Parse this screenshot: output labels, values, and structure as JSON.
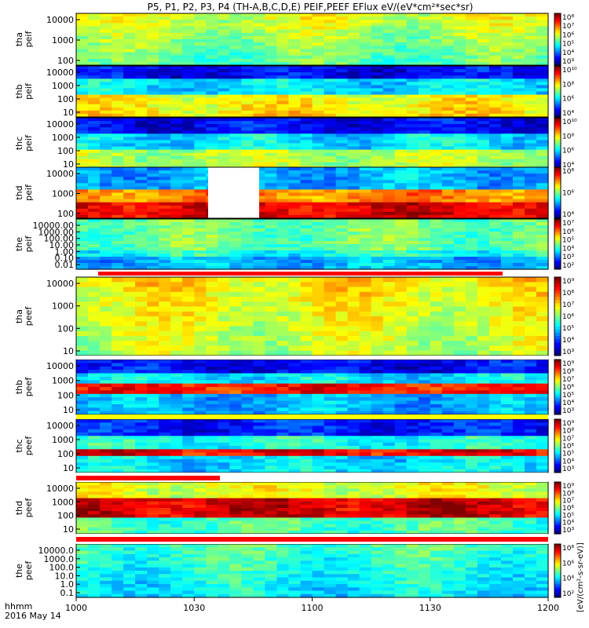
{
  "title": "P5, P1, P2, P3, P4 (TH-A,B,C,D,E) PEIF,PEEF EFlux eV/(eV*cm²*sec*sr)",
  "colorbar_unit": "[eV/(cm²-s-sr-eV)]",
  "time_axis": {
    "label1": "hhmm",
    "label2": "2016 May 14",
    "ticks": [
      "1000",
      "1030",
      "1100",
      "1130",
      "1200"
    ]
  },
  "chart_data": [
    {
      "type": "heatmap",
      "probe": "tha",
      "product": "peif",
      "ylabel": [
        "tha",
        "peif"
      ],
      "yticks": [
        "10000",
        "1000",
        "100"
      ],
      "colorbar_ticks": [
        "10⁸",
        "10⁷",
        "10⁶",
        "10⁵",
        "10⁴",
        "10³"
      ],
      "x_range": [
        "1000",
        "1200"
      ]
    },
    {
      "type": "heatmap",
      "probe": "thb",
      "product": "peif",
      "ylabel": [
        "thb",
        "peif"
      ],
      "yticks": [
        "10000",
        "1000",
        "100",
        "10"
      ],
      "colorbar_ticks": [
        "10¹⁰",
        "10⁸",
        "10⁶",
        "10⁴"
      ],
      "x_range": [
        "1000",
        "1200"
      ]
    },
    {
      "type": "heatmap",
      "probe": "thc",
      "product": "peif",
      "ylabel": [
        "thc",
        "peif"
      ],
      "yticks": [
        "10000",
        "1000",
        "100",
        "10"
      ],
      "colorbar_ticks": [
        "10¹⁰",
        "10⁸",
        "10⁶",
        "10⁴"
      ],
      "x_range": [
        "1000",
        "1200"
      ]
    },
    {
      "type": "heatmap",
      "probe": "thd",
      "product": "peif",
      "ylabel": [
        "thd",
        "peif"
      ],
      "yticks": [
        "10000",
        "1000",
        "100"
      ],
      "colorbar_ticks": [
        "10⁸",
        "10⁶",
        "10⁴"
      ],
      "x_range": [
        "1000",
        "1200"
      ]
    },
    {
      "type": "heatmap",
      "probe": "the",
      "product": "peif",
      "ylabel": [
        "the",
        "peif"
      ],
      "yticks": [
        "10000.00",
        "1000.00",
        "100.00",
        "10.00",
        "1.00",
        "0.10",
        "0.01"
      ],
      "colorbar_ticks": [
        "10⁷",
        "10⁶",
        "10⁵",
        "10⁴",
        "10³",
        "10²"
      ],
      "x_range": [
        "1000",
        "1200"
      ]
    },
    {
      "type": "heatmap",
      "probe": "tha",
      "product": "peef",
      "ylabel": [
        "tha",
        "peef"
      ],
      "yticks": [
        "10000",
        "1000",
        "100",
        "10"
      ],
      "colorbar_ticks": [
        "10⁹",
        "10⁸",
        "10⁷",
        "10⁶",
        "10⁵",
        "10⁴",
        "10³"
      ],
      "x_range": [
        "1000",
        "1200"
      ]
    },
    {
      "type": "heatmap",
      "probe": "thb",
      "product": "peef",
      "ylabel": [
        "thb",
        "peef"
      ],
      "yticks": [
        "10000",
        "1000",
        "100",
        "10"
      ],
      "colorbar_ticks": [
        "10⁹",
        "10⁸",
        "10⁷",
        "10⁶",
        "10⁵",
        "10⁴",
        "10³"
      ],
      "x_range": [
        "1000",
        "1200"
      ]
    },
    {
      "type": "heatmap",
      "probe": "thc",
      "product": "peef",
      "ylabel": [
        "thc",
        "peef"
      ],
      "yticks": [
        "10000",
        "1000",
        "100",
        "10"
      ],
      "colorbar_ticks": [
        "10⁹",
        "10⁸",
        "10⁷",
        "10⁶",
        "10⁵",
        "10⁴",
        "10³"
      ],
      "x_range": [
        "1000",
        "1200"
      ]
    },
    {
      "type": "heatmap",
      "probe": "thd",
      "product": "peef",
      "ylabel": [
        "thd",
        "peef"
      ],
      "yticks": [
        "10000",
        "1000",
        "100",
        "10"
      ],
      "colorbar_ticks": [
        "10⁹",
        "10⁸",
        "10⁷",
        "10⁶",
        "10⁵",
        "10⁴",
        "10³"
      ],
      "x_range": [
        "1000",
        "1200"
      ]
    },
    {
      "type": "heatmap",
      "probe": "the",
      "product": "peef",
      "ylabel": [
        "the",
        "peef"
      ],
      "yticks": [
        "10000.0",
        "1000.0",
        "100.0",
        "10.0",
        "1.0",
        "0.1"
      ],
      "colorbar_ticks": [
        "10⁸",
        "10⁶",
        "10⁴",
        "10²"
      ],
      "x_range": [
        "1000",
        "1200"
      ]
    }
  ]
}
